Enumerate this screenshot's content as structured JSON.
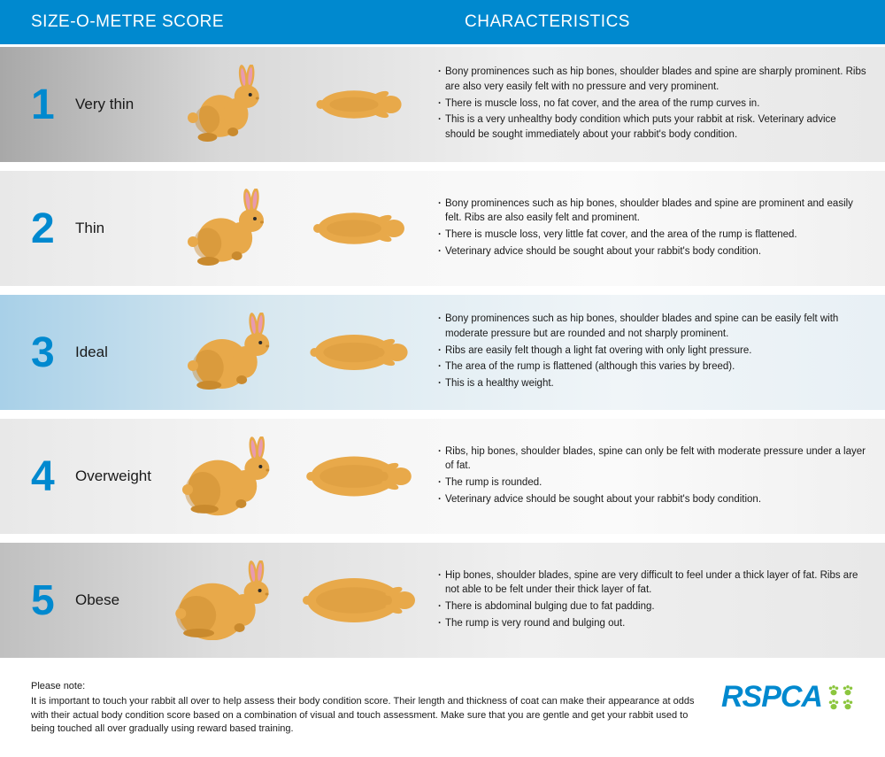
{
  "header": {
    "left": "SIZE-O-METRE SCORE",
    "right": "CHARACTERISTICS"
  },
  "colors": {
    "brand": "#0089cf",
    "paw": "#8cc63f",
    "rabbit_body": "#e8a94a",
    "rabbit_shadow": "#c98a2e",
    "rabbit_ear_inner": "#e89ab0",
    "rabbit_eye": "#2a2a2a",
    "text": "#1a1a1a"
  },
  "rows": [
    {
      "num": "1",
      "label": "Very thin",
      "row_class": "row-1",
      "side_scale": 0.78,
      "top_scale": 0.7,
      "bullets": [
        "Bony prominences such as hip bones, shoulder blades and spine are sharply prominent. Ribs are also very easily felt with no pressure and very prominent.",
        "There is muscle loss, no fat cover, and the area of the rump curves in.",
        "This is a very unhealthy body condition which puts your rabbit at risk. Veterinary advice should be sought immediately about your rabbit's body condition."
      ]
    },
    {
      "num": "2",
      "label": "Thin",
      "row_class": "row-2",
      "side_scale": 0.88,
      "top_scale": 0.82,
      "bullets": [
        "Bony prominences such as hip bones, shoulder blades and spine are prominent and easily felt. Ribs are also easily felt and prominent.",
        "There is muscle loss, very little fat cover, and the area of the rump is flattened.",
        "Veterinary advice should be sought about your rabbit's body condition."
      ]
    },
    {
      "num": "3",
      "label": "Ideal",
      "row_class": "row-3",
      "side_scale": 1.0,
      "top_scale": 0.95,
      "bullets": [
        "Bony prominences such as hip bones, shoulder blades and spine can be easily felt with moderate pressure but are rounded and not sharply prominent.",
        "Ribs are easily felt though a light fat overing with only light pressure.",
        "The area of the rump is flattened (although this varies by breed).",
        "This is a healthy weight."
      ]
    },
    {
      "num": "4",
      "label": "Overweight",
      "row_class": "row-4",
      "side_scale": 1.12,
      "top_scale": 1.1,
      "bullets": [
        "Ribs, hip bones, shoulder blades, spine can only be felt with moderate pressure under a layer of fat.",
        "The rump is rounded.",
        "Veterinary advice should be sought about your rabbit's body condition."
      ]
    },
    {
      "num": "5",
      "label": "Obese",
      "row_class": "row-5",
      "side_scale": 1.25,
      "top_scale": 1.25,
      "bullets": [
        "Hip bones, shoulder blades, spine are very difficult to feel under a thick layer of fat. Ribs are not able to be felt under their thick layer of fat.",
        "There is abdominal bulging due to fat padding.",
        "The rump is very round and bulging out."
      ]
    }
  ],
  "footer": {
    "note_label": "Please note:",
    "note_text": "It is important to touch your rabbit all over to help assess their body condition score. Their length and thickness of coat can make their appearance at odds with their actual body condition score based on a combination of visual and touch assessment. Make sure that you are gentle and get your rabbit used to being touched all over gradually using reward based training.",
    "logo_text": "RSPCA"
  }
}
